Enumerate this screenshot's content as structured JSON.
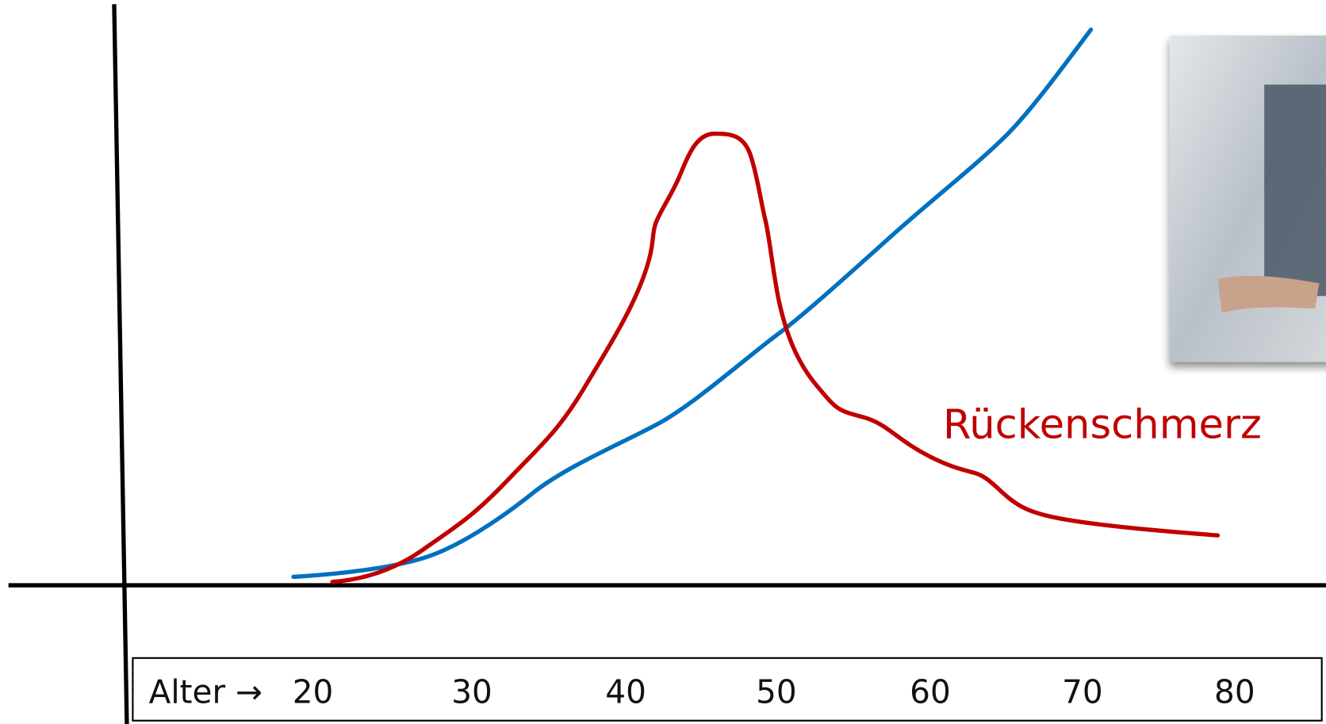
{
  "x_axis": {
    "label": "Alter →",
    "ticks": [
      "20",
      "30",
      "40",
      "50",
      "60",
      "70",
      "80"
    ]
  },
  "annotation": "Rückenschmerz"
}
